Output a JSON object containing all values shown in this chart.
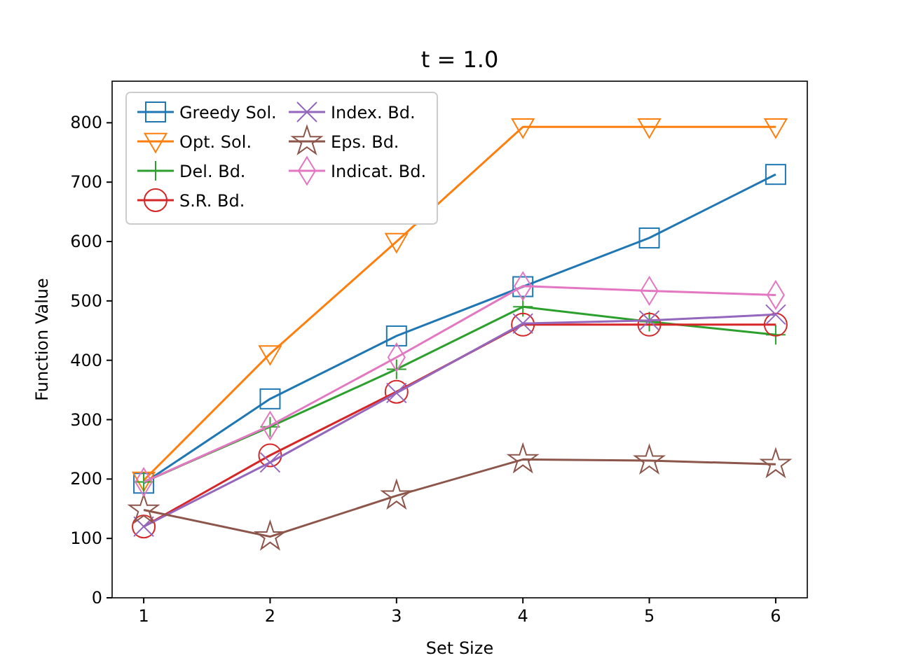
{
  "chart_data": {
    "type": "line",
    "title": "t = 1.0",
    "xlabel": "Set Size",
    "ylabel": "Function Value",
    "x": [
      1,
      2,
      3,
      4,
      5,
      6
    ],
    "xlim": [
      0.75,
      6.25
    ],
    "xticks": [
      1,
      2,
      3,
      4,
      5,
      6
    ],
    "ylim": [
      0,
      870
    ],
    "yticks": [
      0,
      100,
      200,
      300,
      400,
      500,
      600,
      700,
      800
    ],
    "grid": false,
    "legend": "top left",
    "series": [
      {
        "name": "Greedy Sol.",
        "color": "#1f77b4",
        "marker": "square",
        "values": [
          193,
          335,
          441,
          524,
          606,
          713
        ]
      },
      {
        "name": "Opt. Sol.",
        "color": "#ff7f0e",
        "marker": "triangle",
        "values": [
          198,
          411,
          600,
          793,
          793,
          793
        ]
      },
      {
        "name": "Del. Bd.",
        "color": "#2ca02c",
        "marker": "plus",
        "values": [
          195,
          288,
          385,
          490,
          465,
          443
        ]
      },
      {
        "name": "S.R. Bd.",
        "color": "#d62728",
        "marker": "circle",
        "values": [
          120,
          240,
          347,
          460,
          460,
          460
        ]
      },
      {
        "name": "Index. Bd.",
        "color": "#9467bd",
        "marker": "cross",
        "values": [
          120,
          228,
          345,
          462,
          467,
          477
        ]
      },
      {
        "name": "Eps. Bd.",
        "color": "#8c564b",
        "marker": "star",
        "values": [
          148,
          103,
          172,
          233,
          231,
          225
        ]
      },
      {
        "name": "Indicat. Bd.",
        "color": "#e377c2",
        "marker": "diamond",
        "values": [
          195,
          290,
          405,
          525,
          517,
          510
        ]
      }
    ]
  }
}
